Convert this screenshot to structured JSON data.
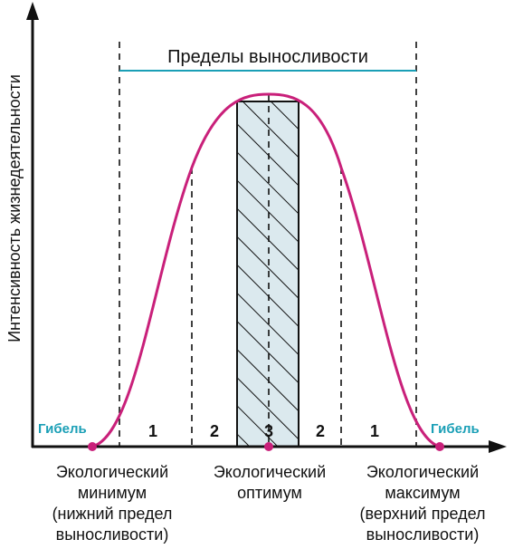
{
  "diagram": {
    "y_axis_label": "Интенсивность жизнедеятельности",
    "tolerance_range_label": "Пределы выносливости",
    "death_left": "Гибель",
    "death_right": "Гибель",
    "zones": {
      "left_outer": "1",
      "left_inner": "2",
      "optimum": "3",
      "right_inner": "2",
      "right_outer": "1"
    },
    "minimum_label": [
      "Экологический",
      "минимум",
      "(нижний предел",
      "выносливости)"
    ],
    "optimum_label": [
      "Экологический",
      "оптимум"
    ],
    "maximum_label": [
      "Экологический",
      "максимум",
      "(верхний предел",
      "выносливости)"
    ],
    "colors": {
      "curve": "#c9207a",
      "death_text": "#1a9fb6",
      "range_line": "#1a9fb6",
      "optimum_fill": "#dbe9ee",
      "axis": "#111111"
    }
  }
}
